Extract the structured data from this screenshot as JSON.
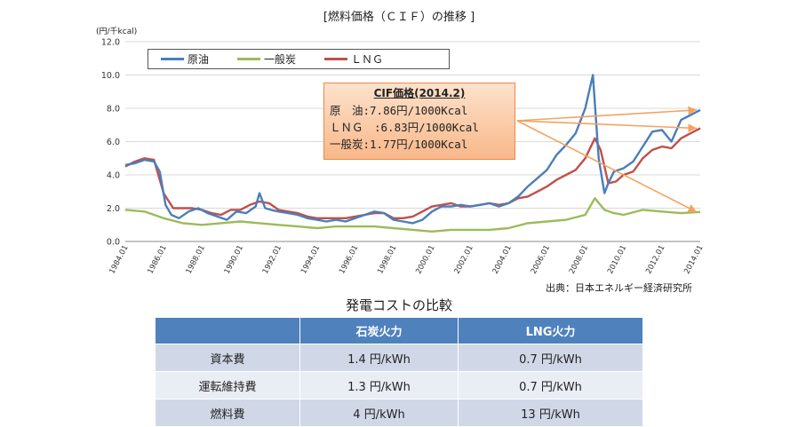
{
  "chart_data": {
    "type": "line",
    "title": "[燃料価格（ＣＩＦ）の推移 ]",
    "ylabel": "(円/千kcal)",
    "ylim": [
      0,
      12
    ],
    "yticks": [
      "0.0",
      "2.0",
      "4.0",
      "6.0",
      "8.0",
      "10.0",
      "12.0"
    ],
    "xlim": [
      1984.0,
      2014.0
    ],
    "xticks": [
      "1984.01",
      "1986.01",
      "1988.01",
      "1990.01",
      "1992.01",
      "1994.01",
      "1996.01",
      "1998.01",
      "2000.01",
      "2002.01",
      "2004.01",
      "2006.01",
      "2008.01",
      "2010.01",
      "2012.01",
      "2014.01"
    ],
    "series": [
      {
        "name": "原油",
        "color": "#4a7ebb",
        "x": [
          1984.0,
          1984.5,
          1985.0,
          1985.5,
          1985.8,
          1986.1,
          1986.4,
          1986.8,
          1987.3,
          1987.8,
          1988.3,
          1988.8,
          1989.3,
          1989.8,
          1990.3,
          1990.8,
          1991.0,
          1991.3,
          1991.6,
          1992.0,
          1992.5,
          1993.0,
          1993.5,
          1994.0,
          1994.5,
          1995.0,
          1995.5,
          1996.0,
          1996.5,
          1997.0,
          1997.5,
          1998.0,
          1998.5,
          1999.0,
          1999.5,
          2000.0,
          2000.5,
          2001.0,
          2001.5,
          2002.0,
          2002.5,
          2003.0,
          2003.5,
          2004.0,
          2004.5,
          2005.0,
          2005.5,
          2006.0,
          2006.5,
          2007.0,
          2007.5,
          2008.0,
          2008.4,
          2008.7,
          2009.0,
          2009.2,
          2009.5,
          2010.0,
          2010.5,
          2011.0,
          2011.5,
          2012.0,
          2012.5,
          2013.0,
          2013.5,
          2014.0
        ],
        "y": [
          4.6,
          4.7,
          4.9,
          4.8,
          4.2,
          2.2,
          1.6,
          1.4,
          1.8,
          2.0,
          1.7,
          1.5,
          1.3,
          1.8,
          1.7,
          2.1,
          2.9,
          2.0,
          1.9,
          1.8,
          1.7,
          1.6,
          1.4,
          1.3,
          1.2,
          1.3,
          1.2,
          1.4,
          1.6,
          1.8,
          1.7,
          1.3,
          1.2,
          1.1,
          1.3,
          1.8,
          2.1,
          2.1,
          2.2,
          2.1,
          2.2,
          2.3,
          2.1,
          2.3,
          2.7,
          3.3,
          3.8,
          4.3,
          5.2,
          5.8,
          6.5,
          8.0,
          10.0,
          5.0,
          2.9,
          3.5,
          4.2,
          4.4,
          4.8,
          5.7,
          6.6,
          6.7,
          6.0,
          7.3,
          7.6,
          7.9
        ]
      },
      {
        "name": "一般炭",
        "color": "#9bbb59",
        "x": [
          1984.0,
          1985.0,
          1986.0,
          1987.0,
          1988.0,
          1989.0,
          1990.0,
          1991.0,
          1992.0,
          1993.0,
          1994.0,
          1995.0,
          1996.0,
          1997.0,
          1998.0,
          1999.0,
          2000.0,
          2001.0,
          2002.0,
          2003.0,
          2004.0,
          2005.0,
          2006.0,
          2007.0,
          2008.0,
          2008.5,
          2009.0,
          2009.5,
          2010.0,
          2011.0,
          2012.0,
          2013.0,
          2014.0
        ],
        "y": [
          1.9,
          1.8,
          1.4,
          1.1,
          1.0,
          1.1,
          1.2,
          1.1,
          1.0,
          0.9,
          0.8,
          0.9,
          0.9,
          0.9,
          0.8,
          0.7,
          0.6,
          0.7,
          0.7,
          0.7,
          0.8,
          1.1,
          1.2,
          1.3,
          1.6,
          2.6,
          1.9,
          1.7,
          1.6,
          1.9,
          1.8,
          1.7,
          1.77
        ]
      },
      {
        "name": "ＬＮＧ",
        "color": "#c0504d",
        "x": [
          1984.0,
          1984.5,
          1985.0,
          1985.5,
          1986.0,
          1986.5,
          1987.0,
          1987.5,
          1988.0,
          1988.5,
          1989.0,
          1989.5,
          1990.0,
          1990.5,
          1991.0,
          1991.5,
          1992.0,
          1992.5,
          1993.0,
          1993.5,
          1994.0,
          1994.5,
          1995.0,
          1995.5,
          1996.0,
          1996.5,
          1997.0,
          1997.5,
          1998.0,
          1998.5,
          1999.0,
          1999.5,
          2000.0,
          2000.5,
          2001.0,
          2001.5,
          2002.0,
          2002.5,
          2003.0,
          2003.5,
          2004.0,
          2004.5,
          2005.0,
          2005.5,
          2006.0,
          2006.5,
          2007.0,
          2007.5,
          2008.0,
          2008.5,
          2008.8,
          2009.2,
          2009.6,
          2010.0,
          2010.5,
          2011.0,
          2011.5,
          2012.0,
          2012.5,
          2013.0,
          2013.5,
          2014.0
        ],
        "y": [
          4.5,
          4.8,
          5.0,
          4.9,
          2.9,
          2.0,
          2.0,
          2.0,
          1.9,
          1.7,
          1.6,
          1.9,
          1.9,
          2.2,
          2.4,
          2.3,
          1.9,
          1.8,
          1.7,
          1.5,
          1.4,
          1.4,
          1.4,
          1.4,
          1.5,
          1.6,
          1.7,
          1.7,
          1.4,
          1.4,
          1.5,
          1.8,
          2.1,
          2.2,
          2.3,
          2.1,
          2.1,
          2.2,
          2.3,
          2.2,
          2.3,
          2.6,
          2.7,
          3.0,
          3.3,
          3.7,
          4.0,
          4.3,
          5.0,
          6.2,
          5.5,
          3.5,
          3.6,
          4.0,
          4.2,
          5.0,
          5.5,
          5.7,
          5.6,
          6.2,
          6.5,
          6.8
        ]
      }
    ]
  },
  "legend": {
    "items": [
      "原油",
      "一般炭",
      "ＬＮＧ"
    ]
  },
  "callout": {
    "title": "CIF価格(2014.2)",
    "rows": [
      "原　油:7.86円/1000Kcal",
      "ＬＮＧ　:6.83円/1000Kcal",
      "一般炭:1.77円/1000Kcal"
    ]
  },
  "source": "出典：日本エネルギー経済研究所",
  "table": {
    "title": "発電コストの比較",
    "headers": [
      "",
      "石炭火力",
      "LNG火力"
    ],
    "rows": [
      [
        "資本費",
        "1.4 円/kWh",
        "0.7 円/kWh"
      ],
      [
        "運転維持費",
        "1.3 円/kWh",
        "0.7 円/kWh"
      ],
      [
        "燃料費",
        "4 円/kWh",
        "13 円/kWh"
      ]
    ]
  },
  "colors": {
    "header": "#4f81bd",
    "row_dark": "#d0d8e8",
    "row_light": "#e9edf4",
    "arrow": "#f4a25f"
  }
}
